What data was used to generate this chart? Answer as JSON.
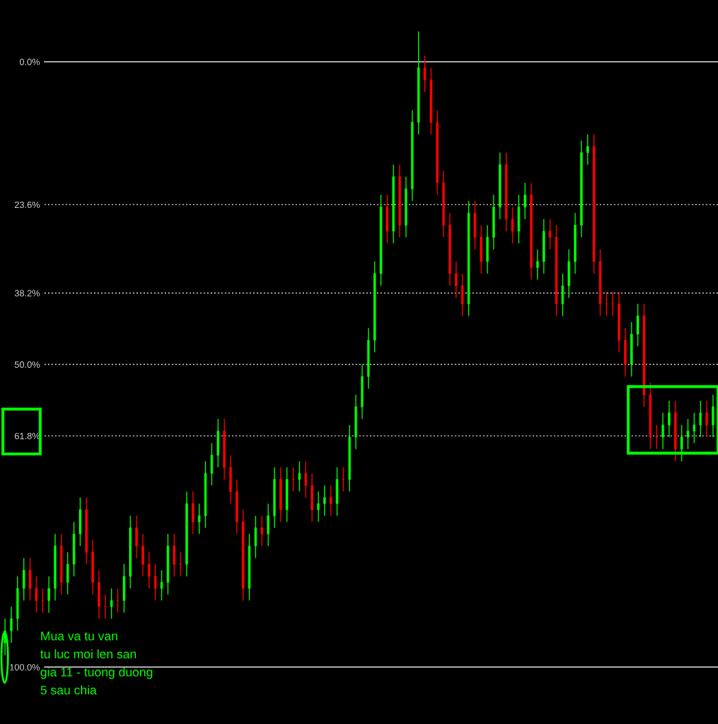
{
  "chart_data": {
    "type": "candlestick",
    "categories": [
      null,
      null,
      null,
      null,
      null,
      null,
      null,
      null,
      null,
      null,
      null,
      null,
      null,
      null,
      null,
      null,
      null,
      null,
      null,
      null,
      null,
      null,
      null,
      null,
      null,
      null,
      null,
      null,
      null,
      null,
      null,
      null,
      null,
      null,
      null,
      null,
      null,
      null,
      null,
      null,
      null,
      null,
      null,
      null,
      null,
      null,
      null,
      null,
      null,
      null,
      null,
      null,
      null,
      null,
      null,
      null,
      null,
      null,
      null,
      null,
      null,
      null,
      null,
      null,
      null,
      null,
      null,
      null,
      null,
      null,
      null,
      null,
      null,
      null,
      null,
      null,
      null,
      null,
      null,
      null,
      null,
      null,
      null,
      null,
      null,
      null,
      null,
      null,
      null,
      null,
      null,
      null,
      null,
      null,
      null,
      null,
      null,
      null,
      null,
      null,
      null,
      null,
      null,
      null,
      null,
      null,
      null,
      null,
      null,
      null,
      null,
      null,
      null,
      null
    ],
    "ohlc": [
      [
        96,
        98,
        92,
        94
      ],
      [
        94,
        96,
        90,
        92
      ],
      [
        92,
        94,
        85,
        87
      ],
      [
        87,
        89,
        82,
        84
      ],
      [
        84,
        89,
        82,
        87
      ],
      [
        87,
        91,
        85,
        89
      ],
      [
        89,
        91,
        87,
        89
      ],
      [
        89,
        91,
        85,
        87
      ],
      [
        87,
        89,
        78,
        80
      ],
      [
        80,
        88,
        78,
        86
      ],
      [
        86,
        88,
        81,
        83
      ],
      [
        83,
        85,
        76,
        78
      ],
      [
        78,
        80,
        72,
        74
      ],
      [
        74,
        83,
        72,
        81
      ],
      [
        81,
        88,
        79,
        86
      ],
      [
        86,
        92,
        84,
        90
      ],
      [
        90,
        92,
        88,
        90
      ],
      [
        90,
        92,
        87,
        89
      ],
      [
        89,
        91,
        87,
        89
      ],
      [
        89,
        91,
        83,
        85
      ],
      [
        85,
        87,
        75,
        77
      ],
      [
        77,
        82,
        75,
        80
      ],
      [
        80,
        85,
        78,
        83
      ],
      [
        83,
        87,
        81,
        85
      ],
      [
        85,
        89,
        83,
        87
      ],
      [
        87,
        89,
        84,
        86
      ],
      [
        86,
        88,
        78,
        80
      ],
      [
        80,
        85,
        78,
        83
      ],
      [
        83,
        85,
        81,
        83
      ],
      [
        83,
        85,
        71,
        73
      ],
      [
        73,
        78,
        71,
        76
      ],
      [
        76,
        78,
        73,
        75
      ],
      [
        75,
        77,
        66,
        68
      ],
      [
        68,
        70,
        63,
        65
      ],
      [
        65,
        67,
        59,
        61
      ],
      [
        61,
        69,
        59,
        67
      ],
      [
        67,
        73,
        65,
        71
      ],
      [
        71,
        78,
        69,
        76
      ],
      [
        76,
        89,
        74,
        87
      ],
      [
        87,
        89,
        78,
        80
      ],
      [
        80,
        82,
        75,
        77
      ],
      [
        77,
        80,
        75,
        78
      ],
      [
        78,
        80,
        73,
        75
      ],
      [
        75,
        77,
        67,
        69
      ],
      [
        69,
        76,
        67,
        74
      ],
      [
        74,
        76,
        67,
        69
      ],
      [
        69,
        71,
        67,
        69
      ],
      [
        69,
        71,
        66,
        68
      ],
      [
        68,
        72,
        66,
        70
      ],
      [
        70,
        76,
        68,
        74
      ],
      [
        74,
        76,
        71,
        73
      ],
      [
        73,
        75,
        70,
        72
      ],
      [
        72,
        75,
        70,
        73
      ],
      [
        73,
        75,
        67,
        69
      ],
      [
        69,
        71,
        67,
        69
      ],
      [
        69,
        71,
        60,
        62
      ],
      [
        62,
        64,
        55,
        57
      ],
      [
        57,
        59,
        50,
        52
      ],
      [
        52,
        54,
        44,
        46
      ],
      [
        46,
        48,
        33,
        35
      ],
      [
        35,
        37,
        22,
        24
      ],
      [
        24,
        30,
        22,
        28
      ],
      [
        28,
        30,
        17,
        19
      ],
      [
        19,
        29,
        17,
        27
      ],
      [
        27,
        29,
        19,
        21
      ],
      [
        21,
        23,
        8,
        10
      ],
      [
        10,
        12,
        -5,
        1
      ],
      [
        1,
        5,
        -1,
        3
      ],
      [
        3,
        12,
        1,
        10
      ],
      [
        10,
        22,
        8,
        20
      ],
      [
        20,
        29,
        18,
        27
      ],
      [
        27,
        37,
        25,
        35
      ],
      [
        35,
        39,
        33,
        37
      ],
      [
        37,
        42,
        35,
        40
      ],
      [
        40,
        42,
        23,
        25
      ],
      [
        25,
        31,
        23,
        29
      ],
      [
        29,
        35,
        27,
        33
      ],
      [
        33,
        35,
        27,
        29
      ],
      [
        29,
        31,
        22,
        24
      ],
      [
        24,
        26,
        15,
        17
      ],
      [
        17,
        28,
        15,
        26
      ],
      [
        26,
        30,
        24,
        28
      ],
      [
        28,
        30,
        22,
        24
      ],
      [
        24,
        26,
        20,
        22
      ],
      [
        22,
        36,
        20,
        34
      ],
      [
        34,
        36,
        31,
        33
      ],
      [
        33,
        35,
        26,
        28
      ],
      [
        28,
        31,
        26,
        29
      ],
      [
        29,
        42,
        27,
        40
      ],
      [
        40,
        42,
        35,
        37
      ],
      [
        37,
        39,
        31,
        33
      ],
      [
        33,
        35,
        25,
        27
      ],
      [
        27,
        29,
        13,
        15
      ],
      [
        15,
        17,
        12,
        14
      ],
      [
        14,
        35,
        12,
        33
      ],
      [
        33,
        42,
        31,
        40
      ],
      [
        40,
        42,
        38,
        40
      ],
      [
        40,
        42,
        38,
        40
      ],
      [
        40,
        48,
        38,
        46
      ],
      [
        46,
        52,
        44,
        50
      ],
      [
        50,
        52,
        43,
        45
      ],
      [
        45,
        47,
        40,
        42
      ],
      [
        42,
        57,
        40,
        55
      ],
      [
        55,
        64,
        53,
        62
      ],
      [
        62,
        64,
        60,
        62
      ],
      [
        62,
        64,
        58,
        60
      ],
      [
        60,
        62,
        56,
        58
      ],
      [
        58,
        66,
        56,
        64
      ],
      [
        64,
        66,
        60,
        62
      ],
      [
        62,
        64,
        59,
        61
      ],
      [
        61,
        63,
        58,
        60
      ],
      [
        60,
        62,
        56,
        58
      ],
      [
        58,
        62,
        56,
        60
      ],
      [
        60,
        62,
        55,
        57
      ]
    ],
    "colors": [
      "#00ff00",
      "#00ff00",
      "#00ff00",
      "#00ff00",
      "#ff0000",
      "#ff0000",
      "#ff0000",
      "#00ff00",
      "#00ff00",
      "#ff0000",
      "#00ff00",
      "#00ff00",
      "#00ff00",
      "#ff0000",
      "#ff0000",
      "#ff0000",
      "#ff0000",
      "#00ff00",
      "#ff0000",
      "#00ff00",
      "#00ff00",
      "#ff0000",
      "#ff0000",
      "#ff0000",
      "#ff0000",
      "#00ff00",
      "#00ff00",
      "#ff0000",
      "#ff0000",
      "#00ff00",
      "#ff0000",
      "#00ff00",
      "#00ff00",
      "#00ff00",
      "#00ff00",
      "#ff0000",
      "#ff0000",
      "#ff0000",
      "#ff0000",
      "#00ff00",
      "#00ff00",
      "#ff0000",
      "#00ff00",
      "#00ff00",
      "#ff0000",
      "#00ff00",
      "#ff0000",
      "#00ff00",
      "#ff0000",
      "#ff0000",
      "#00ff00",
      "#00ff00",
      "#ff0000",
      "#00ff00",
      "#ff0000",
      "#00ff00",
      "#00ff00",
      "#00ff00",
      "#00ff00",
      "#00ff00",
      "#00ff00",
      "#ff0000",
      "#00ff00",
      "#ff0000",
      "#00ff00",
      "#00ff00",
      "#00ff00",
      "#ff0000",
      "#ff0000",
      "#ff0000",
      "#ff0000",
      "#ff0000",
      "#ff0000",
      "#ff0000",
      "#00ff00",
      "#ff0000",
      "#ff0000",
      "#00ff00",
      "#00ff00",
      "#00ff00",
      "#ff0000",
      "#ff0000",
      "#00ff00",
      "#00ff00",
      "#ff0000",
      "#00ff00",
      "#00ff00",
      "#ff0000",
      "#ff0000",
      "#00ff00",
      "#00ff00",
      "#00ff00",
      "#00ff00",
      "#00ff00",
      "#ff0000",
      "#ff0000",
      "#ff0000",
      "#ff0000",
      "#ff0000",
      "#ff0000",
      "#00ff00",
      "#00ff00",
      "#ff0000",
      "#ff0000",
      "#ff0000",
      "#00ff00",
      "#00ff00",
      "#ff0000",
      "#00ff00",
      "#00ff00",
      "#00ff00",
      "#00ff00",
      "#ff0000",
      "#00ff00"
    ],
    "ylim": [
      109.4,
      -10.2
    ],
    "yticks": [
      {
        "value": 0,
        "label": "0.0%"
      },
      {
        "value": 23.6,
        "label": "23.6%"
      },
      {
        "value": 38.2,
        "label": "38.2%"
      },
      {
        "value": 50,
        "label": "50.0%"
      },
      {
        "value": 61.8,
        "label": "61.8%"
      },
      {
        "value": 100,
        "label": "100.0%"
      }
    ],
    "tick_labels": "y",
    "ref_lines": [
      {
        "axis": "y",
        "value": 0,
        "color": "#b0b0b0",
        "line_style": "solid"
      },
      {
        "axis": "y",
        "value": 23.6,
        "color": "#b0b0b0",
        "line_style": "dotted"
      },
      {
        "axis": "y",
        "value": 38.2,
        "color": "#b0b0b0",
        "line_style": "dotted"
      },
      {
        "axis": "y",
        "value": 50,
        "color": "#b0b0b0",
        "line_style": "dotted"
      },
      {
        "axis": "y",
        "value": 61.8,
        "color": "#b0b0b0",
        "line_style": "dotted"
      },
      {
        "axis": "y",
        "value": 100,
        "color": "#b0b0b0",
        "line_style": "solid"
      }
    ],
    "annotations": [
      "Mua va tu van\ntu luc moi len san\ngia 11 - tuong duong\n5 sau chia"
    ]
  }
}
